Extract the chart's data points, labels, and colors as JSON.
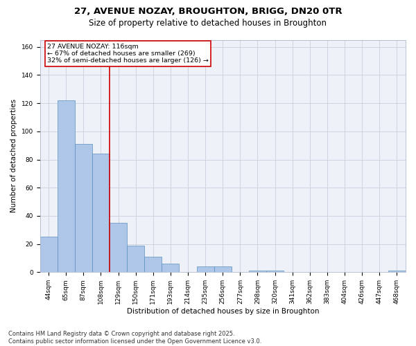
{
  "title_line1": "27, AVENUE NOZAY, BROUGHTON, BRIGG, DN20 0TR",
  "title_line2": "Size of property relative to detached houses in Broughton",
  "xlabel": "Distribution of detached houses by size in Broughton",
  "ylabel": "Number of detached properties",
  "categories": [
    "44sqm",
    "65sqm",
    "87sqm",
    "108sqm",
    "129sqm",
    "150sqm",
    "171sqm",
    "193sqm",
    "214sqm",
    "235sqm",
    "256sqm",
    "277sqm",
    "298sqm",
    "320sqm",
    "341sqm",
    "362sqm",
    "383sqm",
    "404sqm",
    "426sqm",
    "447sqm",
    "468sqm"
  ],
  "values": [
    25,
    122,
    91,
    84,
    35,
    19,
    11,
    6,
    0,
    4,
    4,
    0,
    1,
    1,
    0,
    0,
    0,
    0,
    0,
    0,
    1
  ],
  "bar_color": "#aec6e8",
  "bar_edge_color": "#5a8fc0",
  "vline_color": "#cc0000",
  "vline_x_index": 3,
  "annotation_text": "27 AVENUE NOZAY: 116sqm\n← 67% of detached houses are smaller (269)\n32% of semi-detached houses are larger (126) →",
  "annotation_box_color": "#ffffff",
  "annotation_box_edge": "#cc0000",
  "ylim": [
    0,
    165
  ],
  "yticks": [
    0,
    20,
    40,
    60,
    80,
    100,
    120,
    140,
    160
  ],
  "background_color": "#eef2f8",
  "footer_line1": "Contains HM Land Registry data © Crown copyright and database right 2025.",
  "footer_line2": "Contains public sector information licensed under the Open Government Licence v3.0.",
  "title_fontsize": 9.5,
  "subtitle_fontsize": 8.5,
  "axis_label_fontsize": 7.5,
  "tick_fontsize": 6.5,
  "annotation_fontsize": 6.8,
  "footer_fontsize": 6
}
